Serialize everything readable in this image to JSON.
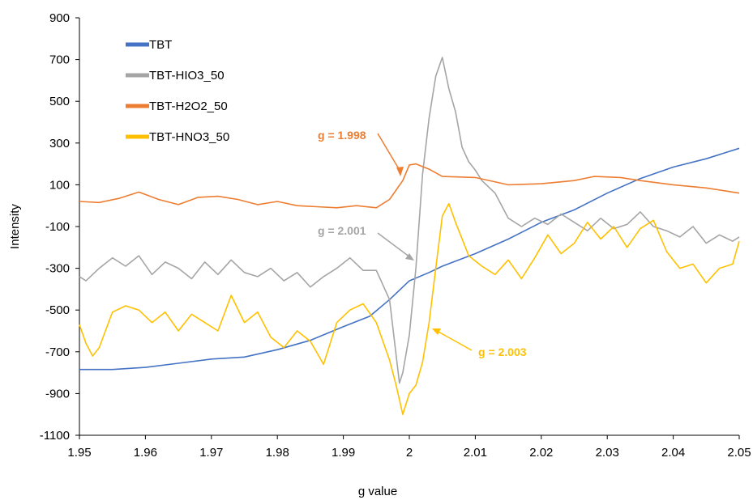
{
  "chart_data": {
    "type": "line",
    "xlabel": "g value",
    "ylabel": "Intensity",
    "xlim": [
      1.95,
      2.05
    ],
    "ylim": [
      -1100,
      900
    ],
    "x_ticks": [
      "1.95",
      "1.96",
      "1.97",
      "1.98",
      "1.99",
      "2",
      "2.01",
      "2.02",
      "2.03",
      "2.04",
      "2.05"
    ],
    "y_ticks": [
      "900",
      "700",
      "500",
      "300",
      "100",
      "-100",
      "-300",
      "-500",
      "-700",
      "-900",
      "-1100"
    ],
    "grid": false,
    "legend_position": "top-left",
    "series": [
      {
        "name": "TBT",
        "color": "#4472C4",
        "points": [
          [
            1.95,
            -785
          ],
          [
            1.955,
            -785
          ],
          [
            1.96,
            -775
          ],
          [
            1.965,
            -755
          ],
          [
            1.97,
            -735
          ],
          [
            1.975,
            -725
          ],
          [
            1.98,
            -690
          ],
          [
            1.985,
            -645
          ],
          [
            1.99,
            -580
          ],
          [
            1.994,
            -530
          ],
          [
            1.997,
            -450
          ],
          [
            2.0,
            -360
          ],
          [
            2.003,
            -320
          ],
          [
            2.005,
            -290
          ],
          [
            2.01,
            -230
          ],
          [
            2.015,
            -160
          ],
          [
            2.02,
            -80
          ],
          [
            2.025,
            -20
          ],
          [
            2.03,
            60
          ],
          [
            2.035,
            130
          ],
          [
            2.04,
            185
          ],
          [
            2.045,
            225
          ],
          [
            2.05,
            275
          ]
        ]
      },
      {
        "name": "TBT-HIO3_50",
        "color": "#A5A5A5",
        "points": [
          [
            1.95,
            -340
          ],
          [
            1.951,
            -360
          ],
          [
            1.953,
            -300
          ],
          [
            1.955,
            -250
          ],
          [
            1.957,
            -290
          ],
          [
            1.959,
            -240
          ],
          [
            1.961,
            -330
          ],
          [
            1.963,
            -270
          ],
          [
            1.965,
            -300
          ],
          [
            1.967,
            -350
          ],
          [
            1.969,
            -270
          ],
          [
            1.971,
            -330
          ],
          [
            1.973,
            -260
          ],
          [
            1.975,
            -320
          ],
          [
            1.977,
            -340
          ],
          [
            1.979,
            -300
          ],
          [
            1.981,
            -360
          ],
          [
            1.983,
            -320
          ],
          [
            1.985,
            -390
          ],
          [
            1.987,
            -340
          ],
          [
            1.989,
            -300
          ],
          [
            1.991,
            -250
          ],
          [
            1.993,
            -310
          ],
          [
            1.995,
            -310
          ],
          [
            1.997,
            -450
          ],
          [
            1.9985,
            -850
          ],
          [
            1.999,
            -800
          ],
          [
            2.0,
            -620
          ],
          [
            2.001,
            -300
          ],
          [
            2.002,
            150
          ],
          [
            2.003,
            420
          ],
          [
            2.004,
            620
          ],
          [
            2.005,
            710
          ],
          [
            2.006,
            560
          ],
          [
            2.007,
            450
          ],
          [
            2.008,
            280
          ],
          [
            2.009,
            210
          ],
          [
            2.01,
            170
          ],
          [
            2.011,
            120
          ],
          [
            2.013,
            60
          ],
          [
            2.015,
            -60
          ],
          [
            2.017,
            -100
          ],
          [
            2.019,
            -60
          ],
          [
            2.021,
            -90
          ],
          [
            2.023,
            -40
          ],
          [
            2.025,
            -80
          ],
          [
            2.027,
            -120
          ],
          [
            2.029,
            -60
          ],
          [
            2.031,
            -110
          ],
          [
            2.033,
            -90
          ],
          [
            2.035,
            -30
          ],
          [
            2.037,
            -100
          ],
          [
            2.039,
            -120
          ],
          [
            2.041,
            -150
          ],
          [
            2.043,
            -100
          ],
          [
            2.045,
            -180
          ],
          [
            2.047,
            -140
          ],
          [
            2.049,
            -170
          ],
          [
            2.05,
            -150
          ]
        ]
      },
      {
        "name": "TBT-H2O2_50",
        "color": "#ED7D31",
        "points": [
          [
            1.95,
            20
          ],
          [
            1.953,
            15
          ],
          [
            1.956,
            35
          ],
          [
            1.959,
            65
          ],
          [
            1.962,
            30
          ],
          [
            1.965,
            5
          ],
          [
            1.968,
            40
          ],
          [
            1.971,
            45
          ],
          [
            1.974,
            30
          ],
          [
            1.977,
            5
          ],
          [
            1.98,
            20
          ],
          [
            1.983,
            0
          ],
          [
            1.986,
            -5
          ],
          [
            1.989,
            -10
          ],
          [
            1.992,
            0
          ],
          [
            1.995,
            -10
          ],
          [
            1.997,
            30
          ],
          [
            1.999,
            120
          ],
          [
            2.0,
            195
          ],
          [
            2.001,
            200
          ],
          [
            2.003,
            175
          ],
          [
            2.005,
            140
          ],
          [
            2.01,
            135
          ],
          [
            2.015,
            100
          ],
          [
            2.02,
            105
          ],
          [
            2.025,
            120
          ],
          [
            2.028,
            140
          ],
          [
            2.032,
            135
          ],
          [
            2.035,
            120
          ],
          [
            2.04,
            100
          ],
          [
            2.045,
            85
          ],
          [
            2.05,
            60
          ]
        ]
      },
      {
        "name": "TBT-HNO3_50",
        "color": "#FFC000",
        "points": [
          [
            1.95,
            -570
          ],
          [
            1.951,
            -660
          ],
          [
            1.952,
            -720
          ],
          [
            1.953,
            -680
          ],
          [
            1.955,
            -510
          ],
          [
            1.957,
            -480
          ],
          [
            1.959,
            -500
          ],
          [
            1.961,
            -560
          ],
          [
            1.963,
            -510
          ],
          [
            1.965,
            -600
          ],
          [
            1.967,
            -520
          ],
          [
            1.969,
            -560
          ],
          [
            1.971,
            -600
          ],
          [
            1.973,
            -430
          ],
          [
            1.975,
            -560
          ],
          [
            1.977,
            -510
          ],
          [
            1.979,
            -630
          ],
          [
            1.981,
            -680
          ],
          [
            1.983,
            -600
          ],
          [
            1.985,
            -650
          ],
          [
            1.987,
            -760
          ],
          [
            1.989,
            -560
          ],
          [
            1.991,
            -500
          ],
          [
            1.993,
            -470
          ],
          [
            1.995,
            -560
          ],
          [
            1.997,
            -740
          ],
          [
            1.998,
            -860
          ],
          [
            1.999,
            -1000
          ],
          [
            2.0,
            -900
          ],
          [
            2.001,
            -860
          ],
          [
            2.002,
            -750
          ],
          [
            2.003,
            -560
          ],
          [
            2.004,
            -300
          ],
          [
            2.005,
            -50
          ],
          [
            2.006,
            10
          ],
          [
            2.007,
            -80
          ],
          [
            2.009,
            -240
          ],
          [
            2.011,
            -290
          ],
          [
            2.013,
            -330
          ],
          [
            2.015,
            -260
          ],
          [
            2.017,
            -350
          ],
          [
            2.019,
            -250
          ],
          [
            2.021,
            -140
          ],
          [
            2.023,
            -230
          ],
          [
            2.025,
            -180
          ],
          [
            2.027,
            -80
          ],
          [
            2.029,
            -160
          ],
          [
            2.031,
            -100
          ],
          [
            2.033,
            -200
          ],
          [
            2.035,
            -110
          ],
          [
            2.037,
            -70
          ],
          [
            2.039,
            -220
          ],
          [
            2.041,
            -300
          ],
          [
            2.043,
            -280
          ],
          [
            2.045,
            -370
          ],
          [
            2.047,
            -300
          ],
          [
            2.049,
            -280
          ],
          [
            2.05,
            -170
          ]
        ]
      }
    ],
    "annotations": [
      {
        "text": "g = 1.998",
        "color": "#ED7D31"
      },
      {
        "text": "g = 2.001",
        "color": "#A5A5A5"
      },
      {
        "text": "g = 2.003",
        "color": "#FFC000"
      }
    ]
  }
}
